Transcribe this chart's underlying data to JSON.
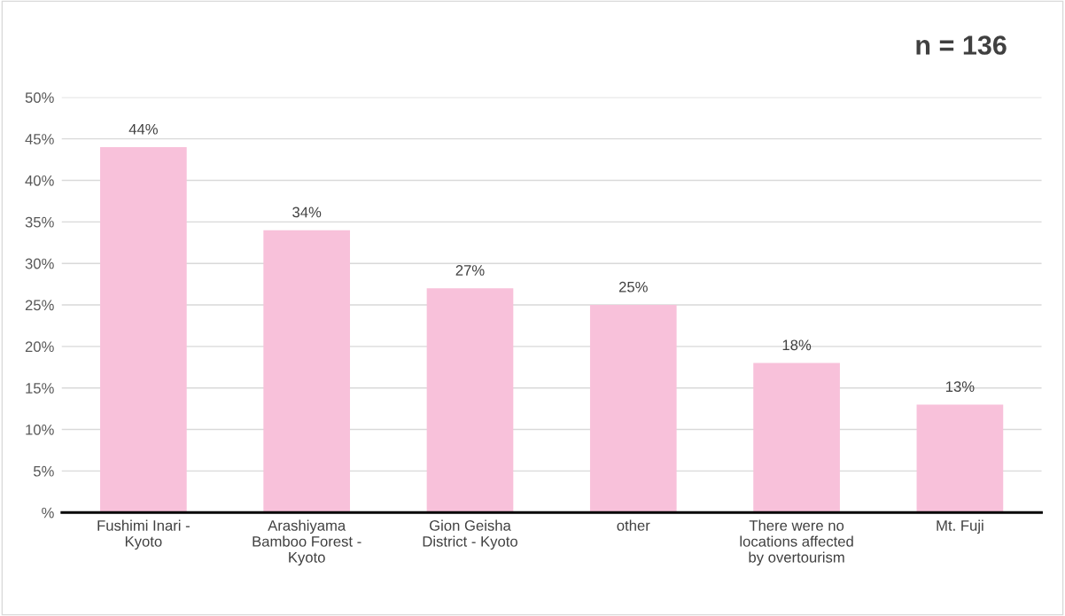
{
  "chart_data": {
    "type": "bar",
    "categories": [
      "Fushimi Inari -\nKyoto",
      "Arashiyama\nBamboo Forest -\nKyoto",
      "Gion Geisha\nDistrict - Kyoto",
      "other",
      "There were no\nlocations affected\nby overtourism",
      "Mt. Fuji"
    ],
    "values": [
      44,
      34,
      27,
      25,
      18,
      13
    ],
    "value_labels": [
      "44%",
      "34%",
      "27%",
      "25%",
      "18%",
      "13%"
    ],
    "color": "#f8c1da",
    "ylim": [
      0,
      50
    ],
    "yticks": [
      {
        "value": 0,
        "label": "%"
      },
      {
        "value": 5,
        "label": "5%"
      },
      {
        "value": 10,
        "label": "10%"
      },
      {
        "value": 15,
        "label": "15%"
      },
      {
        "value": 20,
        "label": "20%"
      },
      {
        "value": 25,
        "label": "25%"
      },
      {
        "value": 30,
        "label": "30%"
      },
      {
        "value": 35,
        "label": "35%"
      },
      {
        "value": 40,
        "label": "40%"
      },
      {
        "value": 45,
        "label": "45%"
      },
      {
        "value": 50,
        "label": "50%"
      }
    ],
    "grid": "y",
    "annotations": [
      "n = 136"
    ]
  }
}
